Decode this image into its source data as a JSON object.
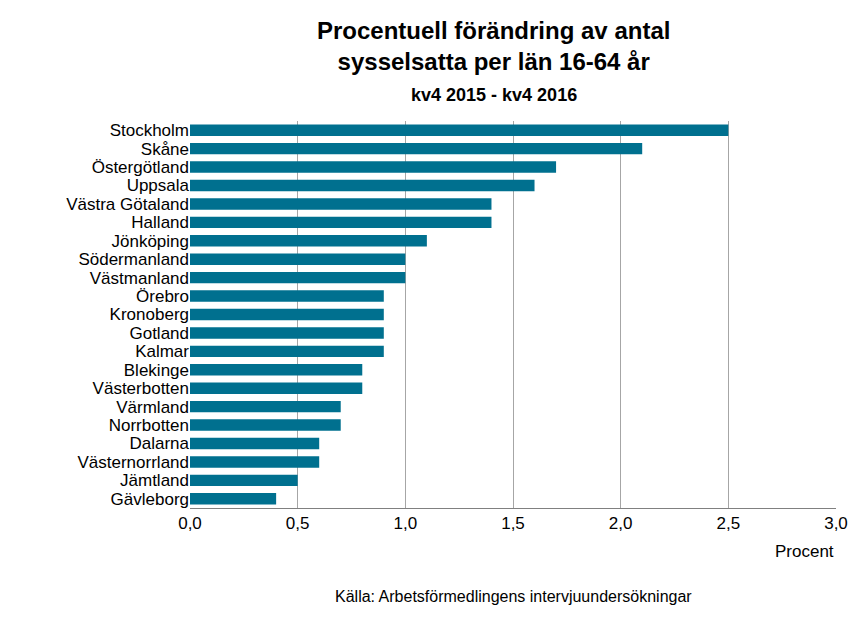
{
  "chart_data": {
    "type": "bar",
    "orientation": "horizontal",
    "title": "Procentuell förändring av antal\nsysselsatta per län 16-64 år",
    "subtitle": "kv4 2015 - kv4 2016",
    "xlabel": "Procent",
    "annotations": [
      "Källa: Arbetsförmedlingens intervjuundersökningar"
    ],
    "categories": [
      "Stockholm",
      "Skåne",
      "Östergötland",
      "Uppsala",
      "Västra Götaland",
      "Halland",
      "Jönköping",
      "Södermanland",
      "Västmanland",
      "Örebro",
      "Kronoberg",
      "Gotland",
      "Kalmar",
      "Blekinge",
      "Västerbotten",
      "Värmland",
      "Norrbotten",
      "Dalarna",
      "Västernorrland",
      "Jämtland",
      "Gävleborg"
    ],
    "values": [
      2.5,
      2.1,
      1.7,
      1.6,
      1.4,
      1.4,
      1.1,
      1.0,
      1.0,
      0.9,
      0.9,
      0.9,
      0.9,
      0.8,
      0.8,
      0.7,
      0.7,
      0.6,
      0.6,
      0.5,
      0.4
    ],
    "color": "#00708f",
    "xlim": [
      0,
      3
    ],
    "xticks": [
      {
        "value": 0,
        "label": "0,0"
      },
      {
        "value": 0.5,
        "label": "0,5"
      },
      {
        "value": 1,
        "label": "1,0"
      },
      {
        "value": 1.5,
        "label": "1,5"
      },
      {
        "value": 2,
        "label": "2,0"
      },
      {
        "value": 2.5,
        "label": "2,5"
      },
      {
        "value": 3,
        "label": "3,0"
      }
    ],
    "grid": true
  }
}
